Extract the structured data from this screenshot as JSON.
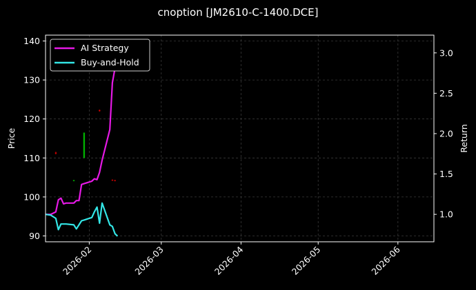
{
  "chart_data": {
    "type": "line",
    "title": "cnoption [JM2610-C-1400.DCE]",
    "ylabel": "Price",
    "y2label": "Return",
    "xlim": [
      "2026-01-15",
      "2026-06-15"
    ],
    "ylim": [
      88.5,
      141.5
    ],
    "y2lim": [
      0.66,
      3.22
    ],
    "xticks": [
      "2026-02",
      "2026-03",
      "2026-04",
      "2026-05",
      "2026-06"
    ],
    "yticks": [
      90,
      100,
      110,
      120,
      130,
      140
    ],
    "y2ticks": [
      "1.0",
      "1.5",
      "2.0",
      "2.5",
      "3.0"
    ],
    "grid": true,
    "legend_position": "top-left",
    "colors": {
      "background": "#000000",
      "ai_strategy": "#e619e6",
      "buy_and_hold": "#33e6e6",
      "up_candle": "#00b000",
      "down_candle": "#d00000",
      "grid": "#3a3a3a",
      "axes": "#ffffff"
    },
    "series": [
      {
        "name": "AI Strategy",
        "axis": "right",
        "x": [
          "2026-01-15",
          "2026-01-17",
          "2026-01-19",
          "2026-01-20",
          "2026-01-21",
          "2026-01-22",
          "2026-01-23",
          "2026-01-26",
          "2026-01-27",
          "2026-01-28",
          "2026-01-29",
          "2026-01-30",
          "2026-02-02",
          "2026-02-03",
          "2026-02-04",
          "2026-02-05",
          "2026-02-06",
          "2026-02-09",
          "2026-02-10",
          "2026-02-11",
          "2026-02-12"
        ],
        "values": [
          1.0,
          1.0,
          1.03,
          1.18,
          1.2,
          1.13,
          1.14,
          1.14,
          1.17,
          1.17,
          1.37,
          1.38,
          1.41,
          1.44,
          1.43,
          1.52,
          1.67,
          2.05,
          2.63,
          2.81,
          3.05
        ]
      },
      {
        "name": "Buy-and-Hold",
        "axis": "right",
        "x": [
          "2026-01-15",
          "2026-01-17",
          "2026-01-19",
          "2026-01-20",
          "2026-01-21",
          "2026-01-22",
          "2026-01-23",
          "2026-01-26",
          "2026-01-27",
          "2026-01-28",
          "2026-01-29",
          "2026-01-30",
          "2026-02-02",
          "2026-02-03",
          "2026-02-04",
          "2026-02-05",
          "2026-02-06",
          "2026-02-09",
          "2026-02-10",
          "2026-02-11",
          "2026-02-12"
        ],
        "values": [
          1.0,
          0.99,
          0.95,
          0.81,
          0.88,
          0.88,
          0.88,
          0.87,
          0.82,
          0.87,
          0.92,
          0.93,
          0.96,
          1.03,
          1.09,
          0.89,
          1.14,
          0.87,
          0.85,
          0.76,
          0.73
        ]
      }
    ],
    "candles": [
      {
        "date": "2026-01-19",
        "open": 111.4,
        "close": 111.1,
        "high": 111.6,
        "low": 110.9
      },
      {
        "date": "2026-01-26",
        "open": 104.1,
        "close": 104.3,
        "high": 104.4,
        "low": 104.0
      },
      {
        "date": "2026-01-30",
        "open": 110.0,
        "close": 116.5,
        "high": 116.5,
        "low": 110.0
      },
      {
        "date": "2026-02-05",
        "open": 122.3,
        "close": 122.0,
        "high": 122.4,
        "low": 121.9
      },
      {
        "date": "2026-02-10",
        "open": 104.4,
        "close": 104.2,
        "high": 104.5,
        "low": 104.1
      },
      {
        "date": "2026-02-11",
        "open": 104.3,
        "close": 104.1,
        "high": 104.4,
        "low": 104.0
      }
    ]
  }
}
